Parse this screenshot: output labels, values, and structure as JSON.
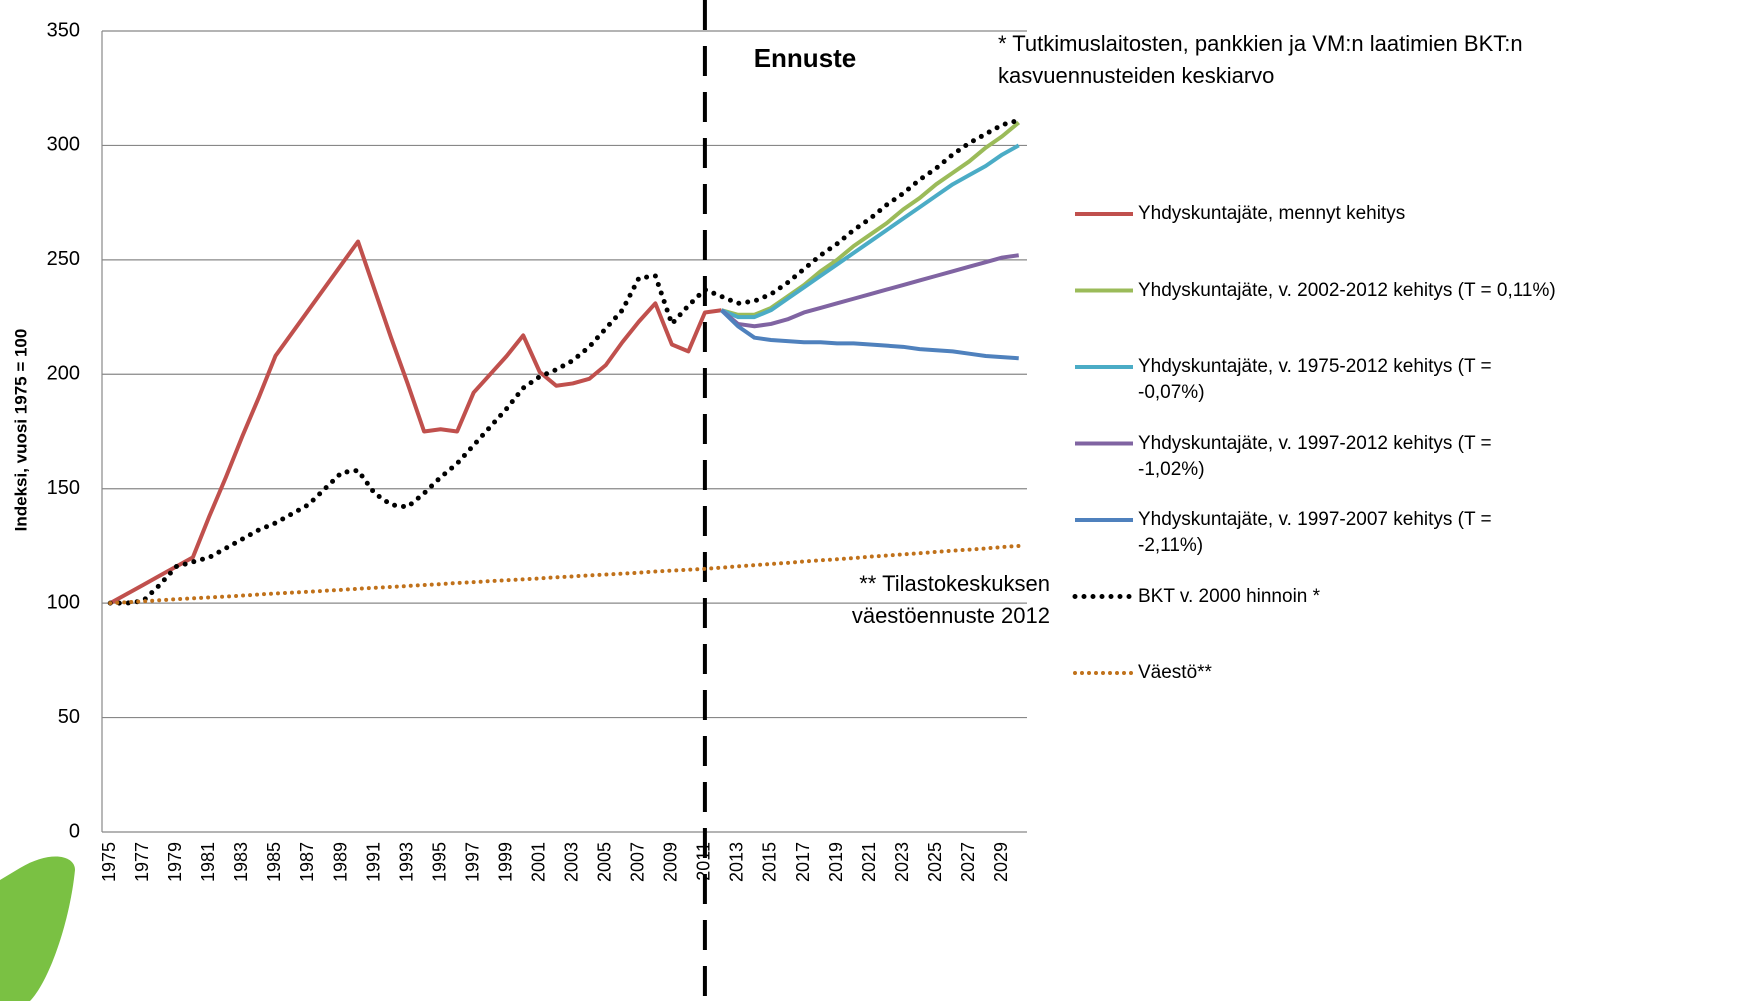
{
  "chart_data": {
    "type": "line",
    "ylabel": "Indeksi, vuosi 1975 = 100",
    "annotations": [
      "Ennuste",
      "* Tutkimuslaitosten, pankkien ja VM:n laatimien BKT:n kasvuennusteiden keskiarvo",
      "** Tilastokeskuksen väestöennuste 2012"
    ],
    "categories": [
      "1975",
      null,
      "1977",
      null,
      "1979",
      null,
      "1981",
      null,
      "1983",
      null,
      "1985",
      null,
      "1987",
      null,
      "1989",
      null,
      "1991",
      null,
      "1993",
      null,
      "1995",
      null,
      "1997",
      null,
      "1999",
      null,
      "2001",
      null,
      "2003",
      null,
      "2005",
      null,
      "2007",
      null,
      "2009",
      null,
      "2011",
      null,
      "2013",
      null,
      "2015",
      null,
      "2017",
      null,
      "2019",
      null,
      "2021",
      null,
      "2023",
      null,
      "2025",
      null,
      "2027",
      null,
      "2029",
      null
    ],
    "ylim": [
      0,
      350
    ],
    "yticks": [
      0,
      50,
      100,
      150,
      200,
      250,
      300,
      350
    ],
    "grid": true,
    "legend": "right",
    "series": [
      {
        "name": "Yhdyskuntajäte, mennyt kehitys",
        "color": "#c0504d",
        "style": "solid",
        "values": [
          100,
          104,
          108,
          112,
          116,
          120,
          138,
          155,
          173,
          190,
          208,
          218,
          228,
          238,
          248,
          258,
          237,
          216,
          196,
          175,
          176,
          175,
          192,
          200,
          208,
          217,
          201,
          195,
          196,
          198,
          204,
          214,
          223,
          231,
          213,
          210,
          227,
          228,
          null,
          null,
          null,
          null,
          null,
          null,
          null,
          null,
          null,
          null,
          null,
          null,
          null,
          null,
          null,
          null,
          null,
          null
        ]
      },
      {
        "name": "Yhdyskuntajäte, v. 2002-2012 kehitys (T = 0,11%)",
        "color": "#9bbb59",
        "style": "solid",
        "values": [
          null,
          null,
          null,
          null,
          null,
          null,
          null,
          null,
          null,
          null,
          null,
          null,
          null,
          null,
          null,
          null,
          null,
          null,
          null,
          null,
          null,
          null,
          null,
          null,
          null,
          null,
          null,
          null,
          null,
          null,
          null,
          null,
          null,
          null,
          null,
          null,
          null,
          228,
          226,
          226,
          229,
          234,
          239,
          245,
          250,
          256,
          261,
          266,
          272,
          277,
          283,
          288,
          293,
          299,
          304,
          310
        ]
      },
      {
        "name": "Yhdyskuntajäte, v. 1975-2012 kehitys (T = -0,07%)",
        "color": "#4bacc6",
        "style": "solid",
        "values": [
          null,
          null,
          null,
          null,
          null,
          null,
          null,
          null,
          null,
          null,
          null,
          null,
          null,
          null,
          null,
          null,
          null,
          null,
          null,
          null,
          null,
          null,
          null,
          null,
          null,
          null,
          null,
          null,
          null,
          null,
          null,
          null,
          null,
          null,
          null,
          null,
          null,
          228,
          225,
          225,
          228,
          233,
          238,
          243,
          248,
          253,
          258,
          263,
          268,
          273,
          278,
          283,
          287,
          291,
          296,
          300
        ]
      },
      {
        "name": "Yhdyskuntajäte, v. 1997-2012 kehitys (T = -1,02%)",
        "color": "#8064a2",
        "style": "solid",
        "values": [
          null,
          null,
          null,
          null,
          null,
          null,
          null,
          null,
          null,
          null,
          null,
          null,
          null,
          null,
          null,
          null,
          null,
          null,
          null,
          null,
          null,
          null,
          null,
          null,
          null,
          null,
          null,
          null,
          null,
          null,
          null,
          null,
          null,
          null,
          null,
          null,
          null,
          228,
          222,
          221,
          222,
          224,
          227,
          229,
          231,
          233,
          235,
          237,
          239,
          241,
          243,
          245,
          247,
          249,
          251,
          252
        ]
      },
      {
        "name": "Yhdyskuntajäte, v. 1997-2007 kehitys (T = -2,11%)",
        "color": "#4f81bd",
        "style": "solid",
        "values": [
          null,
          null,
          null,
          null,
          null,
          null,
          null,
          null,
          null,
          null,
          null,
          null,
          null,
          null,
          null,
          null,
          null,
          null,
          null,
          null,
          null,
          null,
          null,
          null,
          null,
          null,
          null,
          null,
          null,
          null,
          null,
          null,
          null,
          null,
          null,
          null,
          null,
          228,
          221,
          216,
          215,
          214.5,
          214,
          214,
          213.5,
          213.5,
          213,
          212.5,
          212,
          211,
          210.5,
          210,
          209,
          208,
          207.5,
          207
        ]
      },
      {
        "name": "BKT v. 2000 hinnoin *",
        "color": "#000000",
        "style": "dotted",
        "values": [
          100,
          100,
          101,
          108,
          116,
          118,
          120,
          124,
          128,
          132,
          135,
          139,
          143,
          150,
          157,
          158,
          148,
          143,
          142,
          148,
          155,
          161,
          169,
          177,
          185,
          194,
          199,
          202,
          206,
          212,
          220,
          228,
          242,
          243,
          222,
          230,
          237,
          234,
          231,
          232,
          235,
          240,
          246,
          252,
          257,
          263,
          268,
          274,
          279,
          285,
          290,
          296,
          301,
          305,
          309,
          311
        ]
      },
      {
        "name": "Väestö**",
        "color": "#c0711a",
        "style": "dotted-fine",
        "values": [
          100,
          100.4,
          100.8,
          101.3,
          101.7,
          102.1,
          102.5,
          102.9,
          103.3,
          103.8,
          104.2,
          104.6,
          105,
          105.4,
          105.8,
          106.3,
          106.7,
          107.1,
          107.5,
          107.9,
          108.3,
          108.8,
          109.2,
          109.6,
          110,
          110.4,
          110.8,
          111.3,
          111.7,
          112.1,
          112.5,
          112.9,
          113.3,
          113.8,
          114.2,
          114.6,
          115,
          115.5,
          116.1,
          116.6,
          117.1,
          117.6,
          118.2,
          118.7,
          119.2,
          119.7,
          120.3,
          120.8,
          121.3,
          121.8,
          122.4,
          122.9,
          123.4,
          123.9,
          124.5,
          125
        ]
      }
    ]
  }
}
